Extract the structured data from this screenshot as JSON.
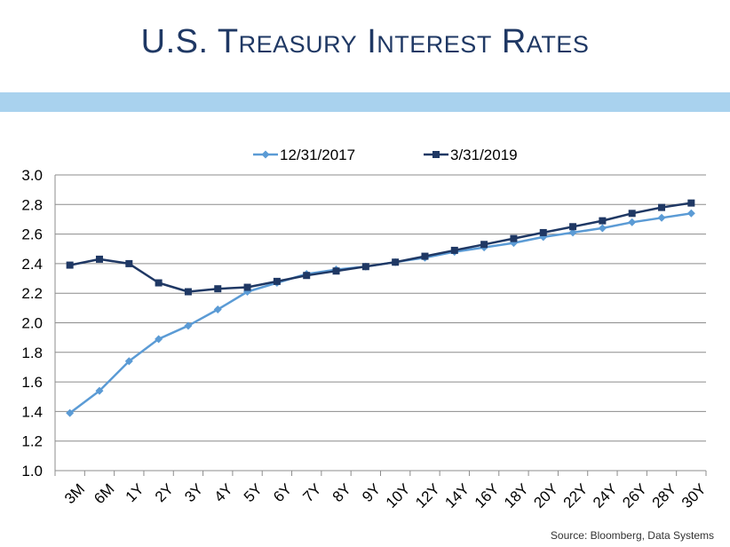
{
  "title": "U.S. Treasury Interest Rates",
  "source": "Source:  Bloomberg, Data Systems",
  "colors": {
    "title": "#1f3864",
    "band": "#a9d2ee"
  },
  "chart_data": {
    "type": "line",
    "title": "",
    "xlabel": "",
    "ylabel": "",
    "categories": [
      "3M",
      "6M",
      "1Y",
      "2Y",
      "3Y",
      "4Y",
      "5Y",
      "6Y",
      "7Y",
      "8Y",
      "9Y",
      "10Y",
      "12Y",
      "14Y",
      "16Y",
      "18Y",
      "20Y",
      "22Y",
      "24Y",
      "26Y",
      "28Y",
      "30Y"
    ],
    "ylim": [
      1.0,
      3.0
    ],
    "yticks": [
      "1.0",
      "1.2",
      "1.4",
      "1.6",
      "1.8",
      "2.0",
      "2.2",
      "2.4",
      "2.6",
      "2.8",
      "3.0"
    ],
    "grid": true,
    "legend_position": "top",
    "series": [
      {
        "name": "12/31/2017",
        "color": "#5b9bd5",
        "marker": "diamond",
        "values": [
          1.39,
          1.54,
          1.74,
          1.89,
          1.98,
          2.09,
          2.21,
          2.27,
          2.33,
          2.36,
          2.38,
          2.41,
          2.44,
          2.48,
          2.51,
          2.54,
          2.58,
          2.61,
          2.64,
          2.68,
          2.71,
          2.74
        ]
      },
      {
        "name": "3/31/2019",
        "color": "#1f3864",
        "marker": "square",
        "values": [
          2.39,
          2.43,
          2.4,
          2.27,
          2.21,
          2.23,
          2.24,
          2.28,
          2.32,
          2.35,
          2.38,
          2.41,
          2.45,
          2.49,
          2.53,
          2.57,
          2.61,
          2.65,
          2.69,
          2.74,
          2.78,
          2.81
        ]
      }
    ]
  }
}
